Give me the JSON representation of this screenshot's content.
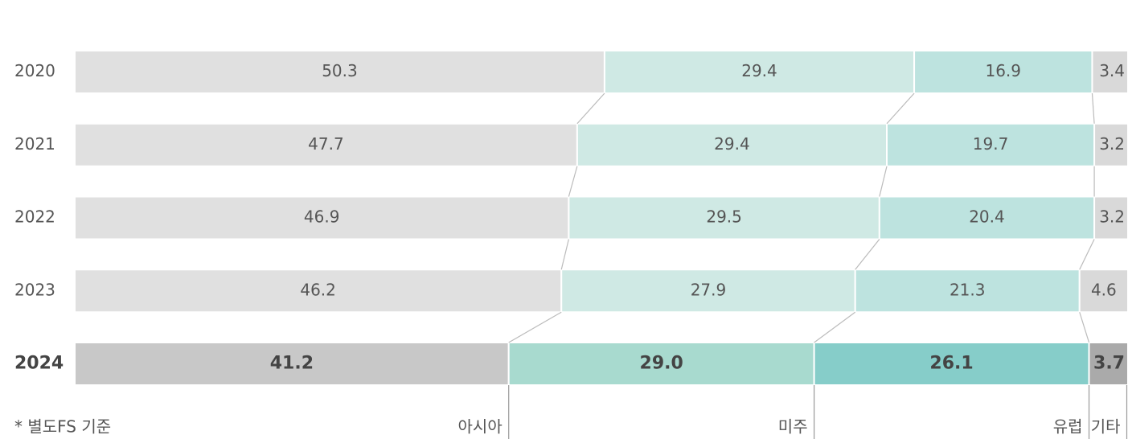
{
  "chart_data": {
    "type": "stacked_bar_100",
    "categories": [
      "2020",
      "2021",
      "2022",
      "2023",
      "2024"
    ],
    "series": [
      {
        "name": "아시아",
        "color": "#e0e0e0",
        "highlight_color": "#c8c8c8",
        "values": [
          50.3,
          47.7,
          46.9,
          46.2,
          41.2
        ]
      },
      {
        "name": "미주",
        "color": "#cfe9e4",
        "highlight_color": "#a8dacf",
        "values": [
          29.4,
          29.4,
          29.5,
          27.9,
          29.0
        ],
        "value_labels": [
          "29.4",
          "29.4",
          "29.5",
          "27.9",
          "29.0"
        ]
      },
      {
        "name": "유럽",
        "color": "#bde3df",
        "highlight_color": "#86cdc9",
        "values": [
          16.9,
          19.7,
          20.4,
          21.3,
          26.1
        ]
      },
      {
        "name": "기타",
        "color": "#d9d9d9",
        "highlight_color": "#aaaaaa",
        "values": [
          3.4,
          3.2,
          3.2,
          4.6,
          3.7
        ]
      }
    ],
    "xlim": [
      0,
      100
    ],
    "note": "* 별도FS 기준"
  }
}
